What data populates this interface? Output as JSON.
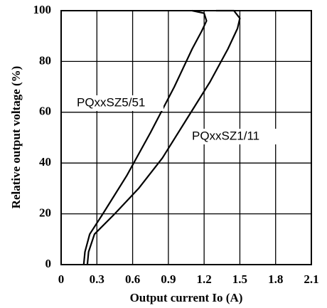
{
  "chart_data": {
    "type": "line",
    "xlabel": "Output current Io (A)",
    "ylabel": "Relative output voltage (%)",
    "xlim": [
      0,
      2.1
    ],
    "xticks": [
      0,
      0.3,
      0.6,
      0.9,
      1.2,
      1.5,
      1.8,
      2.1
    ],
    "ylim": [
      0,
      100
    ],
    "yticks": [
      0,
      20,
      40,
      60,
      80,
      100
    ],
    "grid": true,
    "series": [
      {
        "name": "PQxxSZ5/51",
        "color": "#000000",
        "x": [
          0.19,
          0.2,
          0.24,
          0.35,
          0.55,
          0.75,
          0.95,
          1.1,
          1.18,
          1.22,
          1.2,
          1.1
        ],
        "values": [
          0,
          5,
          12,
          20,
          35,
          52,
          70,
          85,
          92,
          96,
          99,
          100
        ]
      },
      {
        "name": "PQxxSZ1/11",
        "color": "#000000",
        "x": [
          0.22,
          0.23,
          0.28,
          0.45,
          0.65,
          0.85,
          1.05,
          1.25,
          1.4,
          1.48,
          1.5,
          1.45,
          1.3
        ],
        "values": [
          0,
          5,
          12,
          20,
          30,
          42,
          57,
          72,
          85,
          93,
          97,
          100,
          100
        ]
      }
    ]
  }
}
